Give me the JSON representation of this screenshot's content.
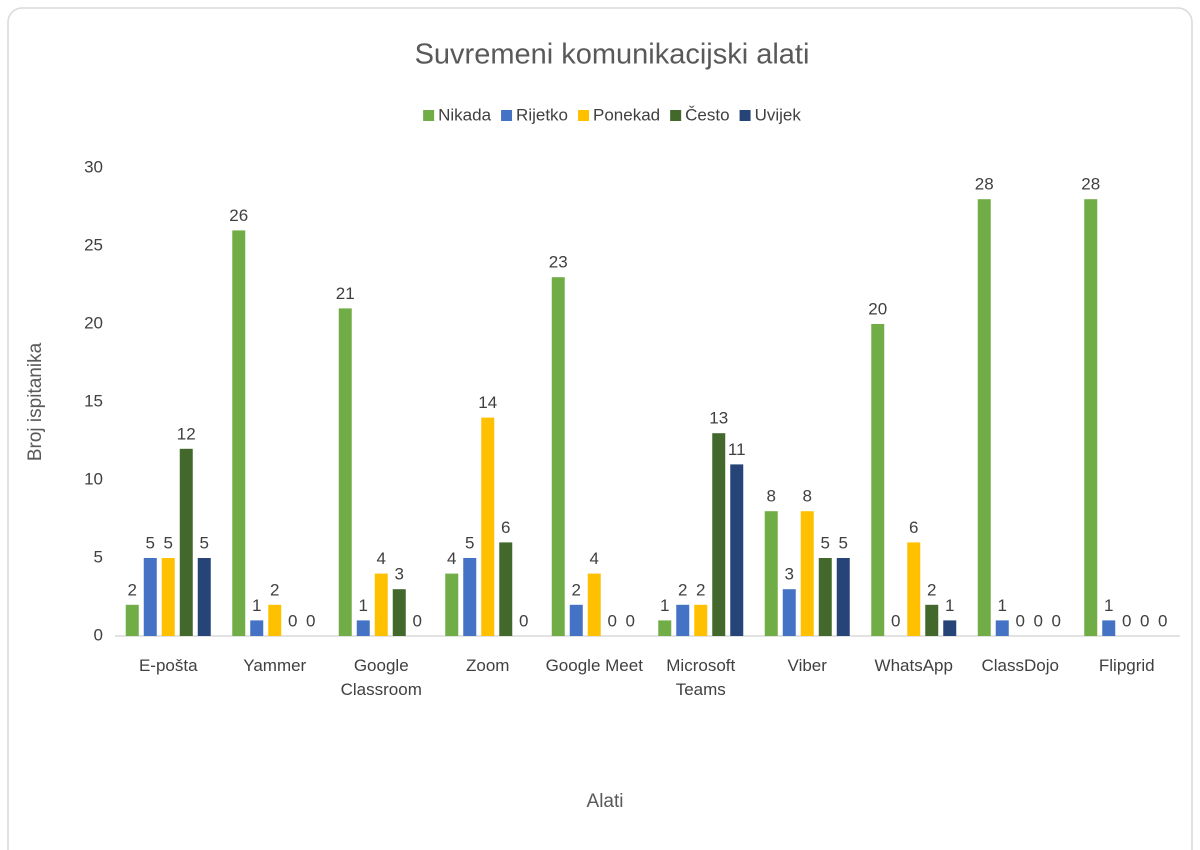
{
  "chart_data": {
    "type": "bar",
    "title": "Suvremeni komunikacijski alati",
    "x_label": "Alati",
    "y_label": "Broj ispitanika",
    "categories": [
      "E-pošta",
      "Yammer",
      "Google Classroom",
      "Zoom",
      "Google Meet",
      "Microsoft Teams",
      "Viber",
      "WhatsApp",
      "ClassDojo",
      "Flipgrid"
    ],
    "series": [
      {
        "name": "Nikada",
        "color": "#70ad47",
        "values": [
          2,
          26,
          21,
          4,
          23,
          1,
          8,
          20,
          28,
          28
        ]
      },
      {
        "name": "Rijetko",
        "color": "#4472c4",
        "values": [
          5,
          1,
          1,
          5,
          2,
          2,
          3,
          0,
          1,
          1
        ]
      },
      {
        "name": "Ponekad",
        "color": "#ffc000",
        "values": [
          5,
          2,
          4,
          14,
          4,
          2,
          8,
          6,
          0,
          0
        ]
      },
      {
        "name": "Često",
        "color": "#43682b",
        "values": [
          12,
          0,
          3,
          6,
          0,
          13,
          5,
          2,
          0,
          0
        ]
      },
      {
        "name": "Uvijek",
        "color": "#264478",
        "values": [
          5,
          0,
          0,
          0,
          0,
          11,
          5,
          1,
          0,
          0
        ]
      }
    ],
    "ylim": [
      0,
      30
    ],
    "yticks": [
      0,
      5,
      10,
      15,
      20,
      25,
      30
    ],
    "grid": false,
    "legend": "top"
  }
}
